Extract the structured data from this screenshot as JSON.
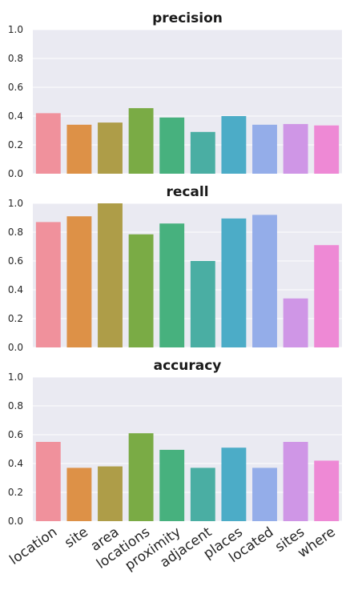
{
  "chart_data": {
    "type": "bar",
    "categories": [
      "location",
      "site",
      "area",
      "locations",
      "proximity",
      "adjacent",
      "places",
      "located",
      "sites",
      "where"
    ],
    "colors": [
      "#f0919c",
      "#dd9147",
      "#ae9d48",
      "#7aab45",
      "#47b17e",
      "#4aaea3",
      "#4cacc7",
      "#94ade9",
      "#cf96e6",
      "#ee89d5"
    ],
    "ylim": [
      0,
      1.0
    ],
    "yticks": [
      "0.0",
      "0.2",
      "0.4",
      "0.6",
      "0.8",
      "1.0"
    ],
    "grid": true,
    "panels": [
      {
        "title": "precision",
        "values": [
          0.42,
          0.34,
          0.355,
          0.455,
          0.39,
          0.29,
          0.4,
          0.34,
          0.345,
          0.335
        ]
      },
      {
        "title": "recall",
        "values": [
          0.87,
          0.91,
          1.0,
          0.785,
          0.86,
          0.6,
          0.895,
          0.92,
          0.34,
          0.71
        ]
      },
      {
        "title": "accuracy",
        "values": [
          0.55,
          0.37,
          0.38,
          0.61,
          0.495,
          0.37,
          0.51,
          0.37,
          0.55,
          0.42
        ]
      }
    ]
  }
}
